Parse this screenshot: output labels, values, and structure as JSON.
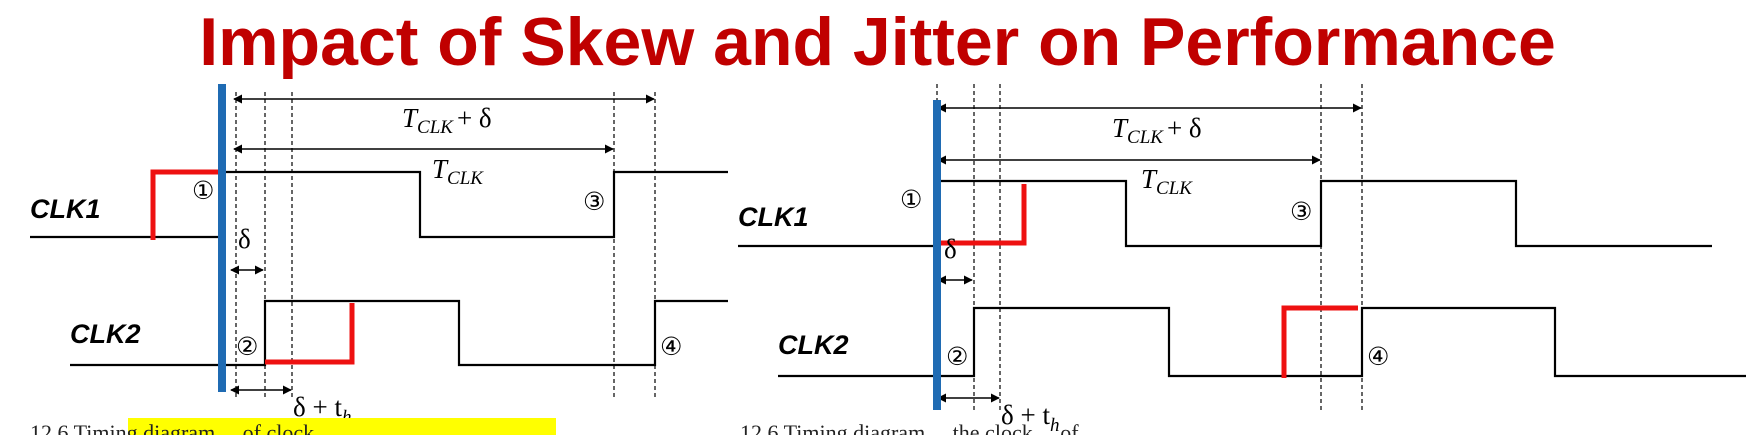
{
  "title": "Impact of Skew and Jitter on Performance",
  "colors": {
    "title": "#c00000",
    "clock_edge_marker": "#1f6bb3",
    "jitter_pulse": "#ee1111",
    "highlight": "#ffff00",
    "waveform": "#000000"
  },
  "left_panel": {
    "clk1_label": "CLK1",
    "clk2_label": "CLK2",
    "period_label": "T",
    "period_subscript": "CLK",
    "period_plus_delta_suffix": "+ δ",
    "delta_label": "δ",
    "delta_plus_th_prefix": "δ + t",
    "delta_plus_th_subscript": "h",
    "markers": [
      "①",
      "②",
      "③",
      "④"
    ],
    "caption_fragment": "12.6 Timing diagram ... of clock ... "
  },
  "right_panel": {
    "clk1_label": "CLK1",
    "clk2_label": "CLK2",
    "period_label": "T",
    "period_subscript": "CLK",
    "period_plus_delta_suffix": "+ δ",
    "delta_label": "δ",
    "delta_plus_th_prefix": "δ + t",
    "delta_plus_th_subscript": "h",
    "markers": [
      "①",
      "③",
      "②",
      "④"
    ],
    "caption_fragment": "12.6 Timing diagram ... the clock ... of ... "
  }
}
